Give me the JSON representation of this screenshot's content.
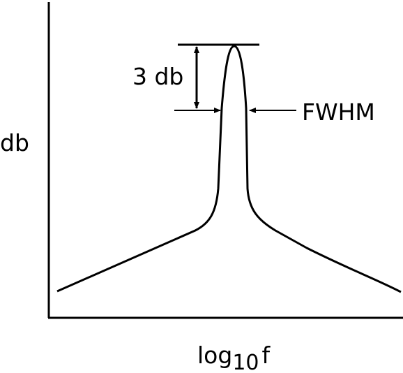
{
  "diagram": {
    "y_axis_label": "db",
    "x_axis_label": {
      "base": "log",
      "subscript": "10",
      "variable": "f"
    },
    "peak_drop_label": "3 db",
    "width_label": "FWHM"
  },
  "colors": {
    "stroke": "#000000",
    "background": "#ffffff"
  }
}
